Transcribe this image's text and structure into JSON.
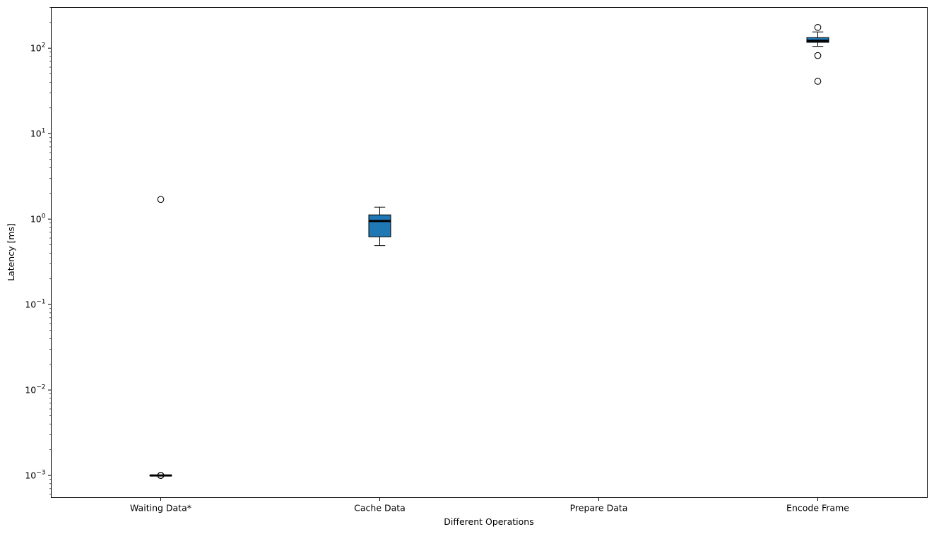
{
  "chart_data": {
    "type": "box",
    "title": "",
    "xlabel": "Different Operations",
    "ylabel": "Latency [ms]",
    "yscale": "log",
    "ylim": [
      0.00055,
      300
    ],
    "grid": false,
    "box_color": "#1f77b4",
    "median_color": "#000000",
    "categories": [
      "Waiting Data*",
      "Cache Data",
      "Prepare Data",
      "Encode Frame"
    ],
    "y_ticks": [
      {
        "value": 0.001,
        "mantissa": "10",
        "exp": "−3"
      },
      {
        "value": 0.01,
        "mantissa": "10",
        "exp": "−2"
      },
      {
        "value": 0.1,
        "mantissa": "10",
        "exp": "−1"
      },
      {
        "value": 1,
        "mantissa": "10",
        "exp": "0"
      },
      {
        "value": 10,
        "mantissa": "10",
        "exp": "1"
      },
      {
        "value": 100,
        "mantissa": "10",
        "exp": "2"
      }
    ],
    "boxes": [
      {
        "category": "Waiting Data*",
        "whisker_low": 0.001,
        "q1": 0.001,
        "median": 0.001,
        "q3": 0.001,
        "whisker_high": 0.001,
        "outliers": [
          1.7,
          0.001,
          0.001,
          0.001
        ]
      },
      {
        "category": "Cache Data",
        "whisker_low": 0.49,
        "q1": 0.62,
        "median": 0.95,
        "q3": 1.12,
        "whisker_high": 1.38,
        "outliers": []
      },
      {
        "category": "Prepare Data",
        "whisker_low": null,
        "q1": null,
        "median": null,
        "q3": null,
        "whisker_high": null,
        "outliers": []
      },
      {
        "category": "Encode Frame",
        "whisker_low": 105,
        "q1": 117,
        "median": 122,
        "q3": 133,
        "whisker_high": 155,
        "outliers": [
          175,
          82,
          41
        ]
      }
    ]
  }
}
